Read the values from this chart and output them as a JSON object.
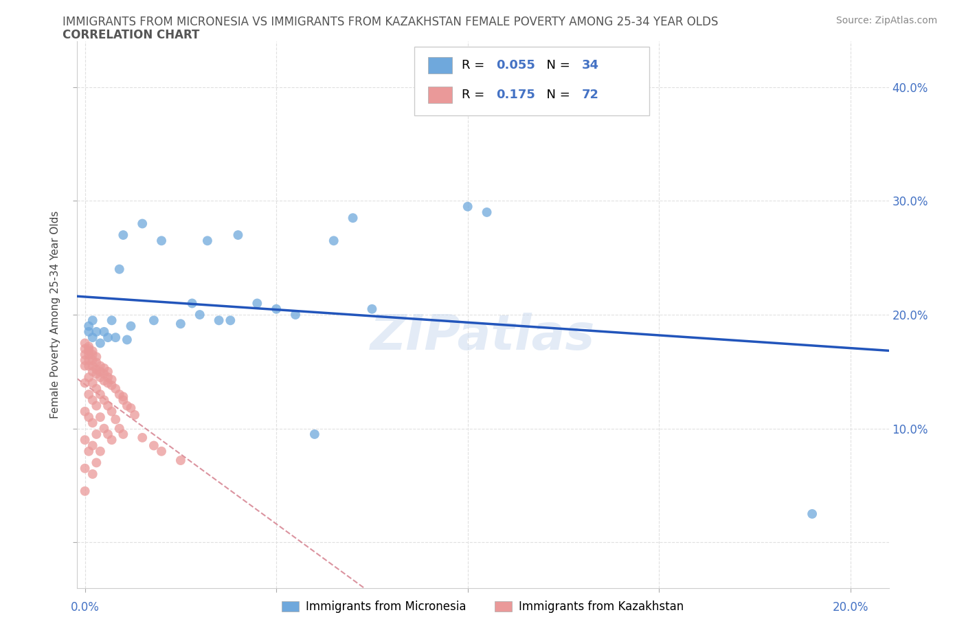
{
  "title_line1": "IMMIGRANTS FROM MICRONESIA VS IMMIGRANTS FROM KAZAKHSTAN FEMALE POVERTY AMONG 25-34 YEAR OLDS",
  "title_line2": "CORRELATION CHART",
  "source": "Source: ZipAtlas.com",
  "ylabel": "Female Poverty Among 25-34 Year Olds",
  "xlim": [
    -0.002,
    0.21
  ],
  "ylim": [
    -0.04,
    0.44
  ],
  "micronesia_color": "#6fa8dc",
  "kazakhstan_color": "#ea9999",
  "micronesia_line_color": "#2255bb",
  "kazakhstan_line_color": "#cc6677",
  "micronesia_R": 0.055,
  "micronesia_N": 34,
  "kazakhstan_R": 0.175,
  "kazakhstan_N": 72,
  "legend_label_micronesia": "Immigrants from Micronesia",
  "legend_label_kazakhstan": "Immigrants from Kazakhstan",
  "micronesia_x": [
    0.001,
    0.001,
    0.002,
    0.002,
    0.003,
    0.004,
    0.005,
    0.006,
    0.007,
    0.008,
    0.009,
    0.01,
    0.011,
    0.012,
    0.015,
    0.018,
    0.02,
    0.025,
    0.028,
    0.03,
    0.032,
    0.035,
    0.038,
    0.04,
    0.045,
    0.05,
    0.055,
    0.06,
    0.065,
    0.07,
    0.075,
    0.1,
    0.105,
    0.19
  ],
  "micronesia_y": [
    0.185,
    0.19,
    0.18,
    0.195,
    0.185,
    0.175,
    0.185,
    0.18,
    0.195,
    0.18,
    0.24,
    0.27,
    0.178,
    0.19,
    0.28,
    0.195,
    0.265,
    0.192,
    0.21,
    0.2,
    0.265,
    0.195,
    0.195,
    0.27,
    0.21,
    0.205,
    0.2,
    0.095,
    0.265,
    0.285,
    0.205,
    0.295,
    0.29,
    0.025
  ],
  "kazakhstan_x": [
    0.0,
    0.0,
    0.0,
    0.0,
    0.0,
    0.0,
    0.0,
    0.0,
    0.0,
    0.0,
    0.001,
    0.001,
    0.001,
    0.001,
    0.001,
    0.001,
    0.001,
    0.001,
    0.001,
    0.001,
    0.002,
    0.002,
    0.002,
    0.002,
    0.002,
    0.002,
    0.002,
    0.002,
    0.002,
    0.002,
    0.003,
    0.003,
    0.003,
    0.003,
    0.003,
    0.003,
    0.003,
    0.003,
    0.004,
    0.004,
    0.004,
    0.004,
    0.004,
    0.004,
    0.005,
    0.005,
    0.005,
    0.005,
    0.005,
    0.006,
    0.006,
    0.006,
    0.006,
    0.006,
    0.007,
    0.007,
    0.007,
    0.007,
    0.008,
    0.008,
    0.009,
    0.009,
    0.01,
    0.01,
    0.01,
    0.011,
    0.012,
    0.013,
    0.015,
    0.018,
    0.02,
    0.025
  ],
  "kazakhstan_y": [
    0.155,
    0.16,
    0.165,
    0.17,
    0.175,
    0.14,
    0.115,
    0.09,
    0.065,
    0.045,
    0.155,
    0.16,
    0.165,
    0.168,
    0.17,
    0.172,
    0.145,
    0.13,
    0.11,
    0.08,
    0.15,
    0.155,
    0.16,
    0.165,
    0.168,
    0.14,
    0.125,
    0.105,
    0.085,
    0.06,
    0.148,
    0.152,
    0.158,
    0.163,
    0.135,
    0.12,
    0.095,
    0.07,
    0.145,
    0.15,
    0.155,
    0.13,
    0.11,
    0.08,
    0.142,
    0.148,
    0.153,
    0.125,
    0.1,
    0.14,
    0.145,
    0.15,
    0.12,
    0.095,
    0.138,
    0.143,
    0.115,
    0.09,
    0.135,
    0.108,
    0.13,
    0.1,
    0.128,
    0.125,
    0.095,
    0.12,
    0.118,
    0.112,
    0.092,
    0.085,
    0.08,
    0.072
  ],
  "watermark_text": "ZIPatlas",
  "background_color": "#ffffff",
  "grid_color": "#e0e0e0",
  "axis_label_color": "#4472c4",
  "title_color": "#555555"
}
